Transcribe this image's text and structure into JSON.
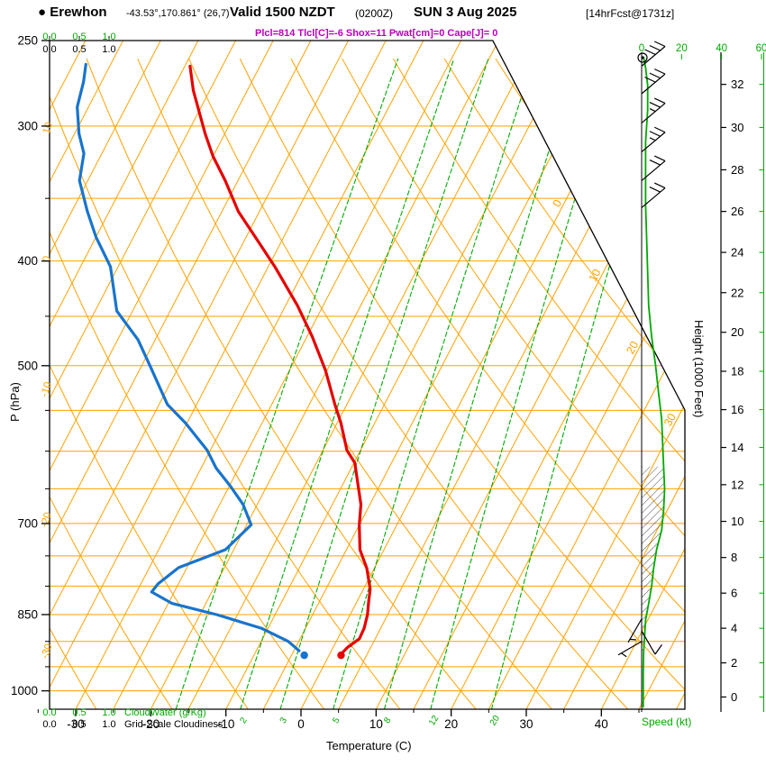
{
  "header": {
    "bullet": "●",
    "station": "Erewhon",
    "coords": "-43.53°,170.861° (26,7)",
    "valid": "Valid 1500 NZDT",
    "valid_utc": "(0200Z)",
    "valid_date": "SUN 3 Aug 2025",
    "fcst_tag": "[14hrFcst@1731z]",
    "indices": "Plcl=814 Tlcl[C]=-6 Shox=11 Pwat[cm]=0 Cape[J]= 0"
  },
  "axes": {
    "pressure_label": "P (hPa)",
    "temperature_label": "Temperature (C)",
    "height_label": "Height (1000 Feet)",
    "speed_label": "Speed (kt)",
    "cloudwater_label": "CloudWater (g/Kg)",
    "cloudiness_label": "Grid-Scale Cloudiness",
    "cloud_scale_ticks": [
      "0.0",
      "0.5",
      "1.0"
    ]
  },
  "colors": {
    "grid_orange": "#ffa200",
    "green": "#00aa00",
    "temperature_red": "#e60000",
    "dewpoint_blue": "#1874cd",
    "magenta": "#bb00bb",
    "black": "#000000"
  },
  "chart_data": {
    "type": "skewt-logp-sounding",
    "pressure_range_hpa": [
      250,
      1040
    ],
    "temperature_ticks_c": [
      -30,
      -20,
      -10,
      0,
      10,
      20,
      30,
      40
    ],
    "pressure_ticks_hpa": [
      250,
      300,
      400,
      500,
      700,
      850,
      1000
    ],
    "pressure_minor_ticks_hpa": [
      350,
      450,
      550,
      600,
      650,
      750,
      800,
      900,
      950
    ],
    "height_ticks_kft": [
      0,
      2,
      4,
      6,
      8,
      10,
      12,
      14,
      16,
      18,
      20,
      22,
      24,
      26,
      28,
      30,
      32
    ],
    "speed_ticks_kt": [
      0,
      20,
      40,
      60
    ],
    "isotherm_labels_c": [
      0,
      10,
      20,
      30
    ],
    "dry_adiabat_labels_c": [
      10,
      0,
      -10,
      -20,
      -30
    ],
    "mixing_ratio_lines_gkg": [
      1,
      2,
      3,
      5,
      8,
      12,
      20
    ],
    "mixing_ratio_labels_gkg": [
      2,
      3,
      5,
      8,
      12,
      20
    ],
    "temperature_profile_p_t": [
      [
        264,
        -59.3
      ],
      [
        278,
        -57.2
      ],
      [
        305,
        -52.6
      ],
      [
        320,
        -50.0
      ],
      [
        337,
        -46.7
      ],
      [
        360,
        -42.8
      ],
      [
        380,
        -38.8
      ],
      [
        405,
        -34.1
      ],
      [
        440,
        -28.4
      ],
      [
        470,
        -24.3
      ],
      [
        505,
        -20.2
      ],
      [
        543,
        -16.6
      ],
      [
        565,
        -14.5
      ],
      [
        599,
        -11.8
      ],
      [
        615,
        -9.9
      ],
      [
        650,
        -7.6
      ],
      [
        672,
        -6.2
      ],
      [
        702,
        -5.0
      ],
      [
        740,
        -3.2
      ],
      [
        770,
        -1.0
      ],
      [
        805,
        0.9
      ],
      [
        828,
        1.6
      ],
      [
        850,
        2.3
      ],
      [
        875,
        2.8
      ],
      [
        895,
        2.9
      ],
      [
        912,
        1.9
      ],
      [
        922,
        1.6
      ]
    ],
    "dewpoint_profile_p_t": [
      [
        263,
        -73.3
      ],
      [
        273,
        -72.4
      ],
      [
        288,
        -71.5
      ],
      [
        305,
        -69.4
      ],
      [
        318,
        -67.4
      ],
      [
        337,
        -66.1
      ],
      [
        360,
        -62.9
      ],
      [
        380,
        -60.0
      ],
      [
        405,
        -56.0
      ],
      [
        445,
        -52.1
      ],
      [
        473,
        -47.3
      ],
      [
        500,
        -43.9
      ],
      [
        543,
        -38.9
      ],
      [
        565,
        -35.2
      ],
      [
        599,
        -30.4
      ],
      [
        622,
        -28.0
      ],
      [
        646,
        -24.9
      ],
      [
        672,
        -21.9
      ],
      [
        702,
        -19.4
      ],
      [
        740,
        -21.1
      ],
      [
        769,
        -26.1
      ],
      [
        796,
        -27.7
      ],
      [
        810,
        -28.0
      ],
      [
        830,
        -24.5
      ],
      [
        850,
        -17.8
      ],
      [
        875,
        -10.9
      ],
      [
        900,
        -6.4
      ],
      [
        918,
        -4.3
      ]
    ],
    "surface_markers": {
      "pressure": 927,
      "temperature": 1.6,
      "dewpoint": -3.3
    },
    "wind_speed_profile_p_kt": [
      [
        259,
        1
      ],
      [
        265,
        2
      ],
      [
        275,
        3
      ],
      [
        290,
        3
      ],
      [
        310,
        2
      ],
      [
        330,
        2
      ],
      [
        355,
        2
      ],
      [
        380,
        2.5
      ],
      [
        410,
        3
      ],
      [
        440,
        3.5
      ],
      [
        470,
        5
      ],
      [
        500,
        7
      ],
      [
        530,
        8.5
      ],
      [
        560,
        10
      ],
      [
        590,
        10.5
      ],
      [
        620,
        11
      ],
      [
        650,
        11.5
      ],
      [
        680,
        11
      ],
      [
        710,
        10
      ],
      [
        740,
        7.5
      ],
      [
        770,
        6
      ],
      [
        800,
        5
      ],
      [
        830,
        3.5
      ],
      [
        860,
        2
      ],
      [
        890,
        1.5
      ],
      [
        920,
        1
      ],
      [
        960,
        0.8
      ],
      [
        1000,
        0.8
      ],
      [
        1035,
        0.8
      ]
    ],
    "wind_barbs_p_dir_kt": [
      [
        264,
        50,
        30
      ],
      [
        280,
        50,
        30
      ],
      [
        298,
        50,
        25
      ],
      [
        317,
        50,
        25
      ],
      [
        337,
        50,
        20
      ],
      [
        357,
        50,
        20
      ],
      [
        858,
        210,
        5
      ],
      [
        880,
        150,
        10
      ],
      [
        900,
        240,
        5
      ]
    ],
    "hatch_pressure_range": [
      600,
      925
    ]
  }
}
